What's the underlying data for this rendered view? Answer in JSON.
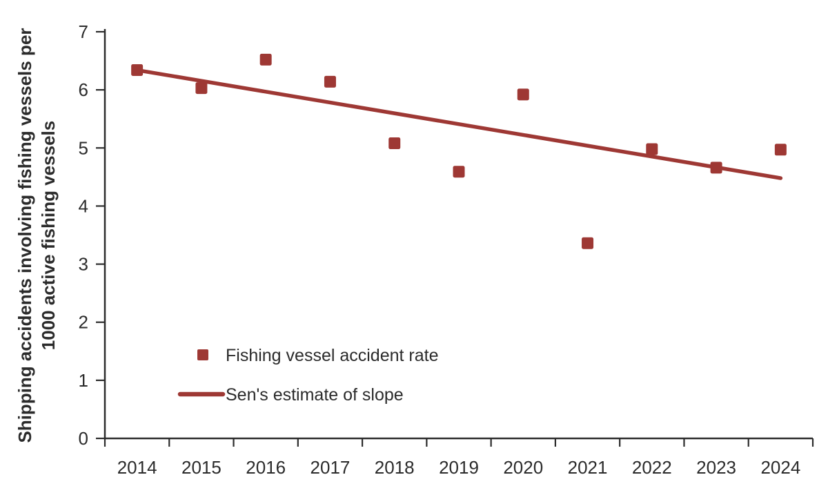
{
  "chart_data": {
    "type": "scatter",
    "x": [
      2014,
      2015,
      2016,
      2017,
      2018,
      2019,
      2020,
      2021,
      2022,
      2023,
      2024
    ],
    "series": [
      {
        "name": "Fishing vessel accident rate",
        "marker": "square",
        "values": [
          6.34,
          6.03,
          6.52,
          6.14,
          5.08,
          4.59,
          5.92,
          3.36,
          4.98,
          4.66,
          4.97
        ]
      }
    ],
    "trend": {
      "name": "Sen's estimate of slope",
      "x_start": 2014,
      "y_start": 6.34,
      "x_end": 2024,
      "y_end": 4.48
    },
    "ylabel_lines": [
      "Shipping accidents involving fishing vessels per",
      "1000 active fishing vessels"
    ],
    "yticks": [
      0,
      1,
      2,
      3,
      4,
      5,
      6,
      7
    ],
    "ylim": [
      0,
      7
    ],
    "grid": false,
    "legend_position": "inside-bottom-left",
    "colors": {
      "series": "#9E3834",
      "axis": "#2B2B2B",
      "text": "#2B2B2B"
    }
  }
}
